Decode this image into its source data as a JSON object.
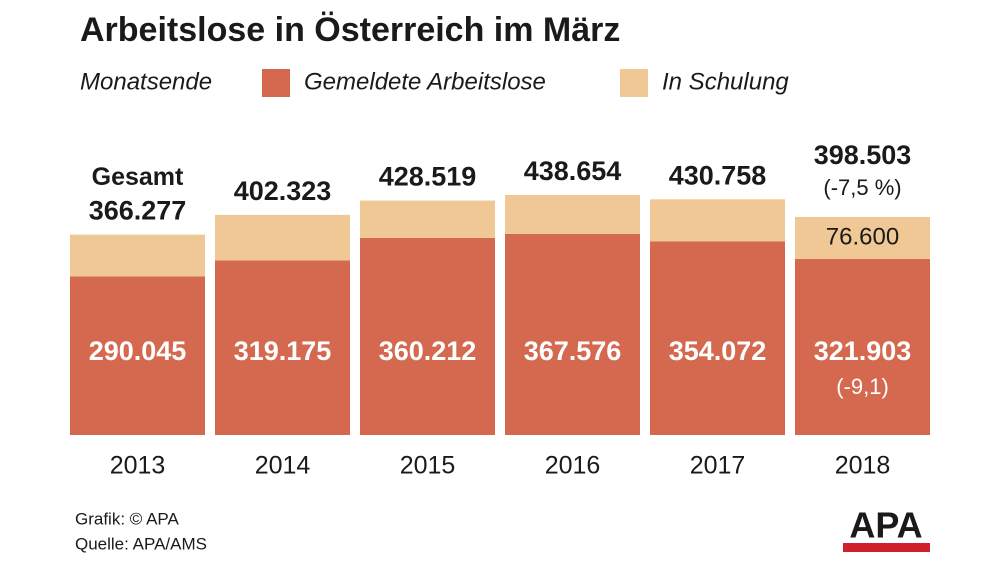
{
  "chart_data": {
    "type": "bar",
    "stacked": true,
    "title": "Arbeitslose in Österreich im März",
    "legend_prefix": "Monatsende",
    "categories": [
      "2013",
      "2014",
      "2015",
      "2016",
      "2017",
      "2018"
    ],
    "series": [
      {
        "name": "Gemeldete Arbeitslose",
        "color": "#d4694f",
        "values": [
          290045,
          319175,
          360212,
          367576,
          354072,
          321903
        ],
        "value_labels": [
          "290.045",
          "319.175",
          "360.212",
          "367.576",
          "354.072",
          "321.903"
        ],
        "change_labels": [
          null,
          null,
          null,
          null,
          null,
          "(-9,1)"
        ]
      },
      {
        "name": "In Schulung",
        "color": "#f0c895",
        "values": [
          76232,
          83148,
          68307,
          71078,
          76686,
          76600
        ],
        "value_labels": [
          null,
          null,
          null,
          null,
          null,
          "76.600"
        ]
      }
    ],
    "totals": {
      "label": "Gesamt",
      "values": [
        366277,
        402323,
        428519,
        438654,
        430758,
        398503
      ],
      "value_labels": [
        "366.277",
        "402.323",
        "428.519",
        "438.654",
        "430.758",
        "398.503"
      ],
      "change_labels": [
        null,
        null,
        null,
        null,
        null,
        "(-7,5 %)"
      ]
    },
    "credits": [
      "Grafik: © APA",
      "Quelle: APA/AMS"
    ],
    "logo": "APA"
  }
}
